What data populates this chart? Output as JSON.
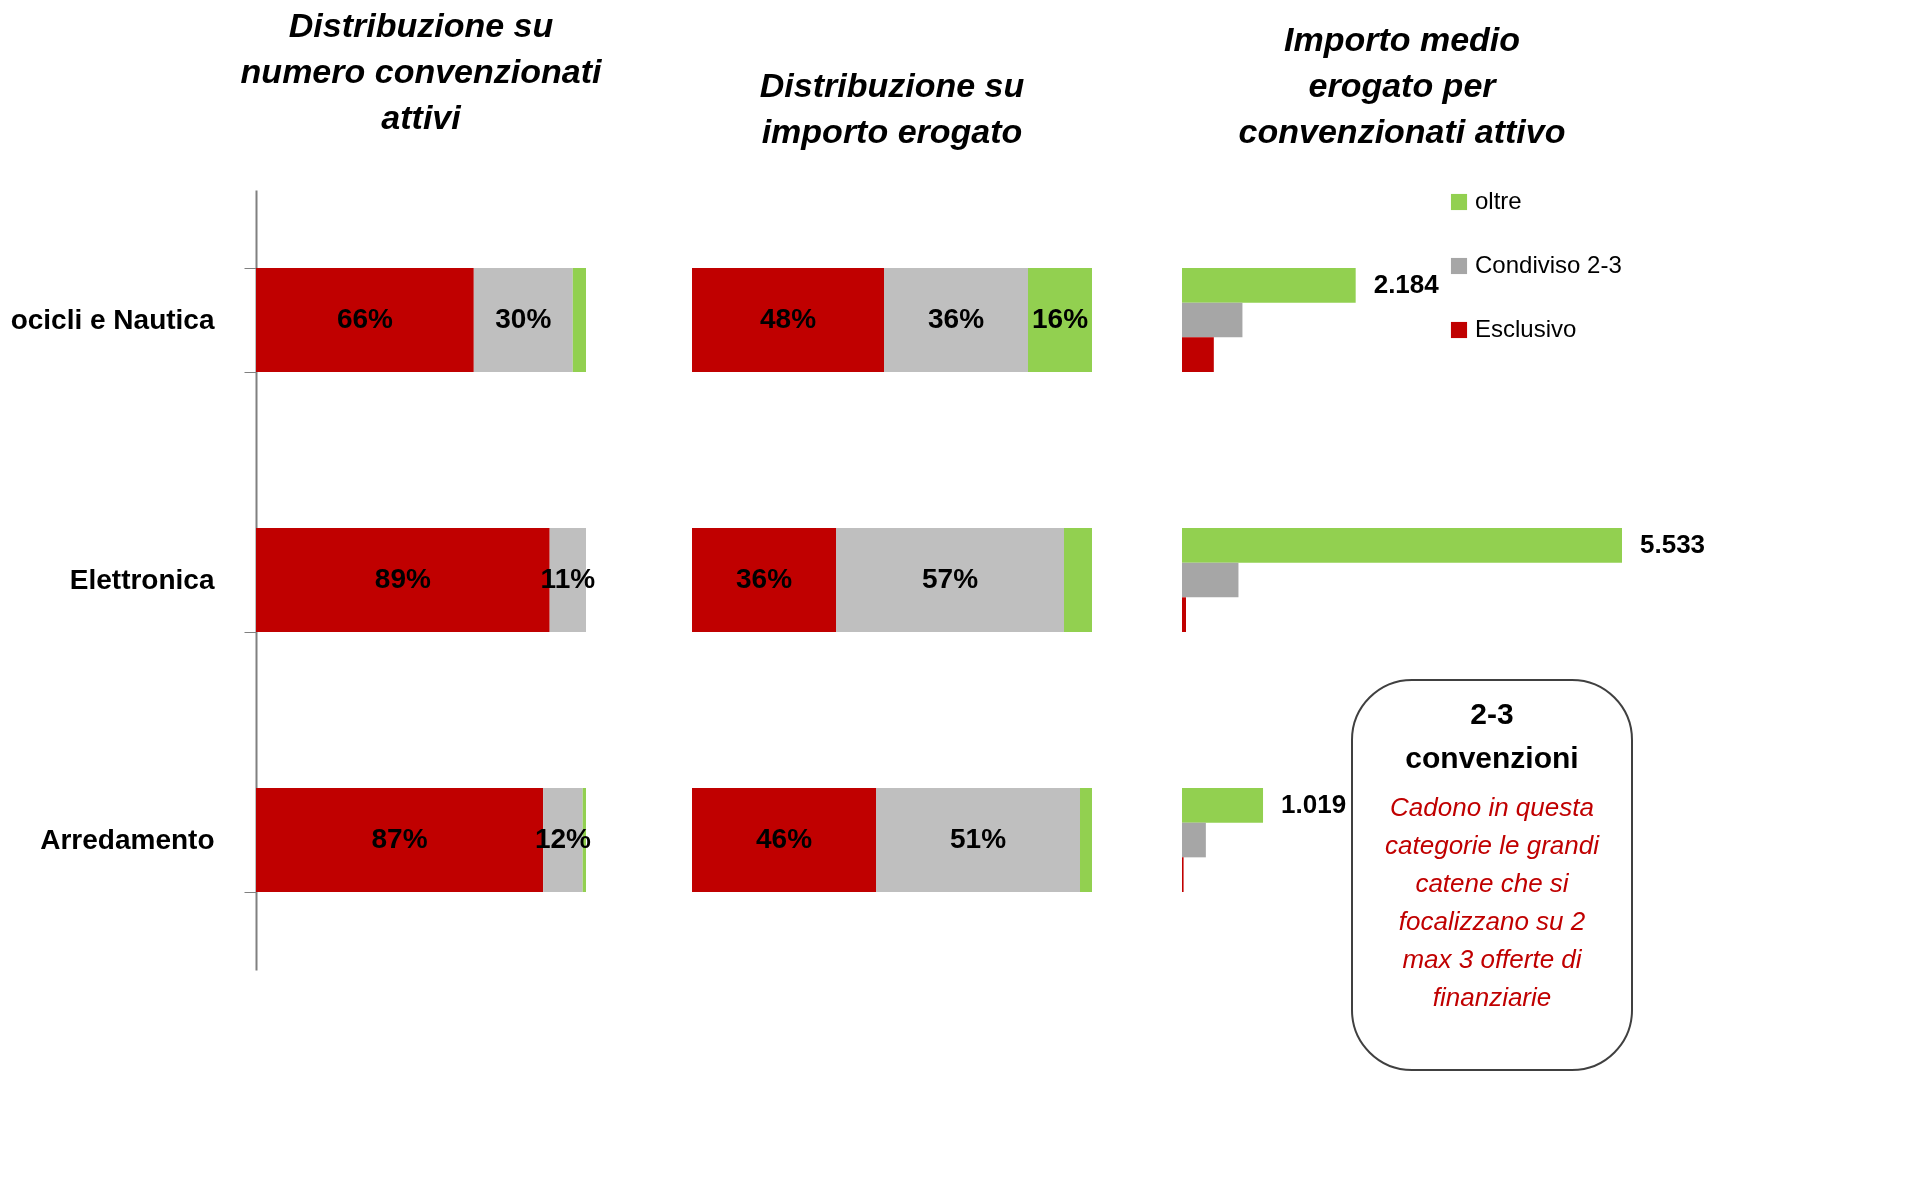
{
  "chart_data": [
    {
      "type": "bar",
      "orientation": "horizontal",
      "stacked": true,
      "title": "Distribuzione su numero convenzionati attivi",
      "categories": [
        "ocicli e Nautica",
        "Elettronica",
        "Arredamento"
      ],
      "xlim": [
        0,
        100
      ],
      "tick_labels": "y",
      "legend": false,
      "grid": false,
      "series": [
        {
          "color": "#c00000",
          "values": [
            66,
            89,
            87
          ],
          "value_labels": [
            "66%",
            "89%",
            "87%"
          ]
        },
        {
          "color": "#bfbfbf",
          "values": [
            30,
            11,
            12
          ],
          "value_labels": [
            "30%",
            "11%",
            "12%"
          ]
        },
        {
          "color": "#92d050",
          "values": [
            4,
            0,
            1
          ],
          "value_labels": [
            null,
            null,
            null
          ]
        }
      ]
    },
    {
      "type": "bar",
      "orientation": "horizontal",
      "stacked": true,
      "title": "Distribuzione su importo erogato",
      "categories": [
        null,
        null,
        null
      ],
      "xlim": [
        0,
        100
      ],
      "tick_labels": false,
      "legend": false,
      "grid": false,
      "series": [
        {
          "color": "#c00000",
          "values": [
            48,
            36,
            46
          ],
          "value_labels": [
            "48%",
            "36%",
            "46%"
          ]
        },
        {
          "color": "#bfbfbf",
          "values": [
            36,
            57,
            51
          ],
          "value_labels": [
            "36%",
            "57%",
            "51%"
          ]
        },
        {
          "color": "#92d050",
          "values": [
            16,
            7,
            3
          ],
          "value_labels": [
            "16%",
            null,
            null
          ]
        }
      ]
    },
    {
      "type": "bar",
      "orientation": "horizontal",
      "title": "Importo medio erogato per convenzionati attivo",
      "categories": [
        null,
        null,
        null
      ],
      "tick_labels": false,
      "legend": "top right",
      "grid": false,
      "series": [
        {
          "name": "oltre",
          "color": "#92d050",
          "values": [
            2184,
            5533,
            1019
          ],
          "value_labels": [
            "2.184",
            "5.533",
            "1.019"
          ]
        },
        {
          "name": "Condiviso 2-3",
          "color": "#a6a6a6",
          "values": [
            760,
            710,
            300
          ],
          "value_labels": [
            null,
            null,
            null
          ]
        },
        {
          "name": "Esclusivo",
          "color": "#c00000",
          "values": [
            400,
            50,
            20
          ],
          "value_labels": [
            null,
            null,
            null
          ]
        }
      ],
      "annotations": [
        "2-3 convenzioni",
        "Cadono in questa categorie le grandi catene che si focalizzano su 2 max 3 offerte di finanziarie"
      ]
    }
  ]
}
